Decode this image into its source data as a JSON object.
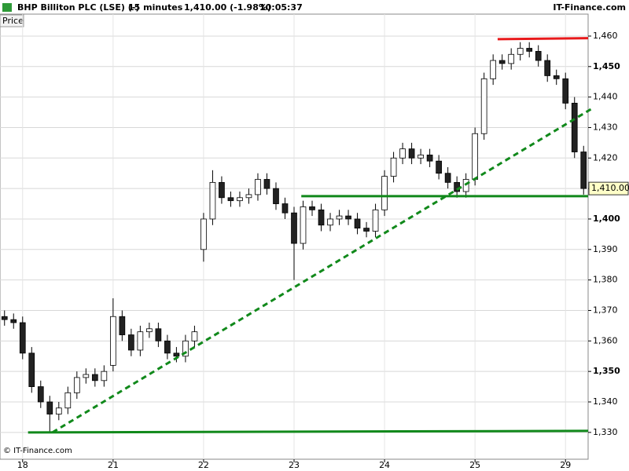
{
  "chart_data": {
    "type": "candlestick",
    "title": "BHP Billiton PLC (LSE) (-)",
    "interval": "15 minutes",
    "last_price_text": "1,410.00 (-1.98%)",
    "time": "10:05:37",
    "brand": "IT-Finance.com",
    "legend": "Price",
    "copyright": "© IT-Finance.com",
    "last_price": {
      "value": 1410,
      "label": "1,410.00"
    },
    "categories": [
      null,
      null,
      "18",
      null,
      null,
      null,
      null,
      null,
      null,
      null,
      null,
      null,
      "21",
      null,
      null,
      null,
      null,
      null,
      null,
      null,
      null,
      null,
      "22",
      null,
      null,
      null,
      null,
      null,
      null,
      null,
      null,
      null,
      "23",
      null,
      null,
      null,
      null,
      null,
      null,
      null,
      null,
      null,
      "24",
      null,
      null,
      null,
      null,
      null,
      null,
      null,
      null,
      null,
      "25",
      null,
      null,
      null,
      null,
      null,
      null,
      null,
      null,
      null,
      "29",
      null,
      null
    ],
    "open": [
      1368,
      1367,
      1366,
      1356,
      1345,
      1340,
      1336,
      1338,
      1343,
      1348,
      1349,
      1347,
      1352,
      1368,
      1362,
      1357,
      1363,
      1364,
      1360,
      1356,
      1355,
      1360,
      1390,
      1400,
      1412,
      1407,
      1406,
      1407,
      1408,
      1413,
      1410,
      1405,
      1402,
      1392,
      1404,
      1403,
      1398,
      1400,
      1401,
      1400,
      1397,
      1396,
      1403,
      1414,
      1420,
      1423,
      1420,
      1421,
      1419,
      1415,
      1412,
      1409,
      1413,
      1428,
      1446,
      1452,
      1451,
      1454,
      1456,
      1455,
      1452,
      1447,
      1446,
      1438,
      1422
    ],
    "high": [
      1370,
      1369,
      1368,
      1358,
      1347,
      1342,
      1340,
      1345,
      1350,
      1351,
      1351,
      1352,
      1374,
      1370,
      1364,
      1365,
      1366,
      1366,
      1362,
      1358,
      1362,
      1365,
      1402,
      1416,
      1414,
      1409,
      1409,
      1410,
      1415,
      1415,
      1412,
      1407,
      1404,
      1406,
      1406,
      1405,
      1402,
      1403,
      1403,
      1402,
      1399,
      1405,
      1416,
      1422,
      1425,
      1425,
      1423,
      1423,
      1421,
      1417,
      1414,
      1415,
      1430,
      1448,
      1454,
      1454,
      1456,
      1458,
      1458,
      1457,
      1454,
      1449,
      1448,
      1440,
      1424
    ],
    "low": [
      1365,
      1364,
      1354,
      1343,
      1338,
      1330,
      1334,
      1336,
      1341,
      1346,
      1345,
      1345,
      1350,
      1360,
      1355,
      1355,
      1361,
      1358,
      1354,
      1353,
      1353,
      1358,
      1386,
      1398,
      1405,
      1404,
      1404,
      1405,
      1406,
      1408,
      1403,
      1400,
      1380,
      1390,
      1401,
      1396,
      1396,
      1398,
      1398,
      1395,
      1394,
      1394,
      1401,
      1412,
      1418,
      1418,
      1418,
      1417,
      1413,
      1410,
      1407,
      1407,
      1411,
      1426,
      1444,
      1449,
      1449,
      1452,
      1453,
      1450,
      1445,
      1444,
      1436,
      1420,
      1408
    ],
    "close": [
      1367,
      1366,
      1356,
      1345,
      1340,
      1336,
      1338,
      1343,
      1348,
      1349,
      1347,
      1350,
      1368,
      1362,
      1357,
      1363,
      1364,
      1360,
      1356,
      1355,
      1360,
      1363,
      1400,
      1412,
      1407,
      1406,
      1407,
      1408,
      1413,
      1410,
      1405,
      1402,
      1392,
      1404,
      1403,
      1398,
      1400,
      1401,
      1400,
      1397,
      1396,
      1403,
      1414,
      1420,
      1423,
      1420,
      1421,
      1419,
      1415,
      1412,
      1409,
      1413,
      1428,
      1446,
      1452,
      1451,
      1454,
      1456,
      1455,
      1452,
      1447,
      1446,
      1438,
      1422,
      1410
    ],
    "up_color": "#ffffff",
    "down_color": "#222222",
    "ylim": [
      1321.2,
      1467.2
    ],
    "yticks": [
      {
        "value": 1330,
        "label": "1,330"
      },
      {
        "value": 1340,
        "label": "1,340"
      },
      {
        "value": 1350,
        "label": "1,350"
      },
      {
        "value": 1360,
        "label": "1,360"
      },
      {
        "value": 1370,
        "label": "1,370"
      },
      {
        "value": 1380,
        "label": "1,380"
      },
      {
        "value": 1390,
        "label": "1,390"
      },
      {
        "value": 1400,
        "label": "1,400"
      },
      {
        "value": 1410,
        "label": "1,410"
      },
      {
        "value": 1420,
        "label": "1,420"
      },
      {
        "value": 1430,
        "label": "1,430"
      },
      {
        "value": 1440,
        "label": "1,440"
      },
      {
        "value": 1450,
        "label": "1,450"
      },
      {
        "value": 1460,
        "label": "1,460"
      }
    ],
    "grid": true,
    "lines": [
      {
        "x1": 55,
        "x2": 65,
        "y1": 1459,
        "y2": 1459.3,
        "color": "#e8191b",
        "dashed": false
      },
      {
        "x1": 33.3,
        "x2": 65,
        "y1": 1407.5,
        "y2": 1407.5,
        "color": "#11891b",
        "dashed": false
      },
      {
        "x1": 3.1,
        "x2": 65,
        "y1": 1330,
        "y2": 1330.5,
        "color": "#11891b",
        "dashed": false
      },
      {
        "x1": 5.8,
        "x2": 65.3,
        "y1": 1330,
        "y2": 1436,
        "color": "#11891b",
        "dashed": true
      }
    ]
  }
}
